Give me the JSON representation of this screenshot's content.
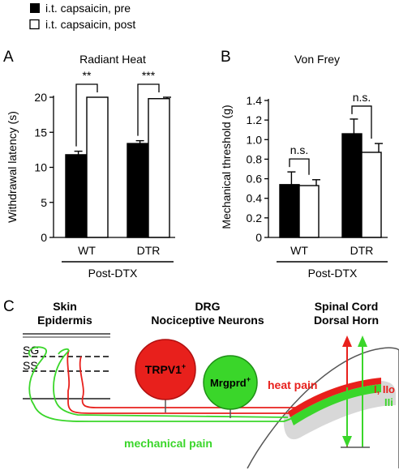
{
  "legend": {
    "pre": "i.t. capsaicin, pre",
    "post": "i.t. capsaicin, post"
  },
  "chart_data": [
    {
      "panel": "A",
      "type": "bar",
      "title": "Radiant Heat",
      "ylabel": "Withdrawal latency (s)",
      "xlabel": "Post-DTX",
      "categories": [
        "WT",
        "DTR"
      ],
      "ylim": [
        0,
        20
      ],
      "yticks": [
        "0",
        "5",
        "10",
        "15",
        "20"
      ],
      "series": [
        {
          "name": "i.t. capsaicin, pre",
          "values": [
            11.8,
            13.4
          ],
          "errors": [
            0.5,
            0.4
          ]
        },
        {
          "name": "i.t. capsaicin, post",
          "values": [
            20.0,
            19.8
          ],
          "errors": [
            0,
            0.2
          ]
        }
      ],
      "significance": [
        "**",
        "***"
      ]
    },
    {
      "panel": "B",
      "type": "bar",
      "title": "Von Frey",
      "ylabel": "Mechanical threshold (g)",
      "xlabel": "Post-DTX",
      "categories": [
        "WT",
        "DTR"
      ],
      "ylim": [
        0,
        1.4
      ],
      "yticks": [
        "0",
        "0.2",
        "0.4",
        "0.6",
        "0.8",
        "1.0",
        "1.2",
        "1.4"
      ],
      "series": [
        {
          "name": "i.t. capsaicin, pre",
          "values": [
            0.54,
            1.06
          ],
          "errors": [
            0.13,
            0.15
          ]
        },
        {
          "name": "i.t. capsaicin, post",
          "values": [
            0.53,
            0.87
          ],
          "errors": [
            0.06,
            0.09
          ]
        }
      ],
      "significance": [
        "n.s.",
        "n.s."
      ]
    }
  ],
  "panel_c": {
    "label": "C",
    "skin_title": [
      "Skin",
      "Epidermis"
    ],
    "drg_title": [
      "DRG",
      "Nociceptive Neurons"
    ],
    "cord_title": [
      "Spinal Cord",
      "Dorsal Horn"
    ],
    "layer_sg": "SG",
    "layer_ss": "SS",
    "neuron_trpv1": "TRPV1",
    "neuron_trpv1_sup": "+",
    "neuron_mrgprd": "Mrgprd",
    "neuron_mrgprd_sup": "+",
    "heat_pain": "heat pain",
    "mechanical_pain": "mechanical pain",
    "lamina_1": "I, IIo",
    "lamina_2": "IIi",
    "colors": {
      "red": "#e8201c",
      "green": "#3ad62a",
      "darkred": "#b01010"
    }
  }
}
